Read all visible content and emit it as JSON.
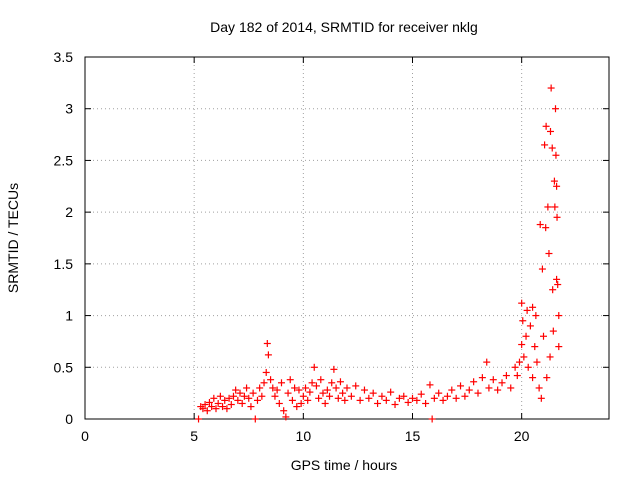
{
  "chart_data": {
    "type": "scatter",
    "title": "Day 182 of 2014, SRMTID for receiver nklg",
    "xlabel": "GPS time / hours",
    "ylabel": "SRMTID / TECUs",
    "xlim": [
      0,
      24
    ],
    "ylim": [
      0,
      3.5
    ],
    "grid": true,
    "legend": "none",
    "xticks": [
      {
        "value": 0,
        "label": "0"
      },
      {
        "value": 5,
        "label": "5"
      },
      {
        "value": 10,
        "label": "10"
      },
      {
        "value": 15,
        "label": "15"
      },
      {
        "value": 20,
        "label": "20"
      }
    ],
    "yticks": [
      {
        "value": 0,
        "label": "0"
      },
      {
        "value": 0.5,
        "label": "0.5"
      },
      {
        "value": 1,
        "label": "1"
      },
      {
        "value": 1.5,
        "label": "1.5"
      },
      {
        "value": 2,
        "label": "2"
      },
      {
        "value": 2.5,
        "label": "2.5"
      },
      {
        "value": 3,
        "label": "3"
      },
      {
        "value": 3.5,
        "label": "3.5"
      }
    ],
    "marker": "+",
    "color": "#ff0000",
    "series": [
      {
        "name": "SRMTID",
        "points": [
          [
            5.2,
            0.0
          ],
          [
            5.3,
            0.12
          ],
          [
            5.4,
            0.1
          ],
          [
            5.5,
            0.14
          ],
          [
            5.6,
            0.08
          ],
          [
            5.7,
            0.16
          ],
          [
            5.8,
            0.12
          ],
          [
            5.9,
            0.2
          ],
          [
            6.0,
            0.1
          ],
          [
            6.1,
            0.15
          ],
          [
            6.2,
            0.22
          ],
          [
            6.3,
            0.12
          ],
          [
            6.4,
            0.18
          ],
          [
            6.5,
            0.1
          ],
          [
            6.6,
            0.2
          ],
          [
            6.7,
            0.14
          ],
          [
            6.8,
            0.22
          ],
          [
            6.9,
            0.28
          ],
          [
            7.0,
            0.18
          ],
          [
            7.1,
            0.25
          ],
          [
            7.2,
            0.15
          ],
          [
            7.3,
            0.22
          ],
          [
            7.4,
            0.3
          ],
          [
            7.5,
            0.2
          ],
          [
            7.6,
            0.12
          ],
          [
            7.7,
            0.25
          ],
          [
            7.8,
            0.0
          ],
          [
            7.9,
            0.18
          ],
          [
            8.0,
            0.3
          ],
          [
            8.1,
            0.22
          ],
          [
            8.2,
            0.35
          ],
          [
            8.3,
            0.45
          ],
          [
            8.35,
            0.73
          ],
          [
            8.4,
            0.62
          ],
          [
            8.5,
            0.38
          ],
          [
            8.6,
            0.3
          ],
          [
            8.7,
            0.22
          ],
          [
            8.8,
            0.28
          ],
          [
            8.9,
            0.15
          ],
          [
            9.0,
            0.35
          ],
          [
            9.1,
            0.08
          ],
          [
            9.2,
            0.02
          ],
          [
            9.3,
            0.25
          ],
          [
            9.4,
            0.38
          ],
          [
            9.5,
            0.18
          ],
          [
            9.6,
            0.3
          ],
          [
            9.7,
            0.12
          ],
          [
            9.8,
            0.28
          ],
          [
            9.9,
            0.15
          ],
          [
            10.0,
            0.22
          ],
          [
            10.1,
            0.3
          ],
          [
            10.2,
            0.18
          ],
          [
            10.3,
            0.26
          ],
          [
            10.4,
            0.35
          ],
          [
            10.5,
            0.5
          ],
          [
            10.6,
            0.32
          ],
          [
            10.7,
            0.2
          ],
          [
            10.8,
            0.38
          ],
          [
            10.9,
            0.25
          ],
          [
            11.0,
            0.15
          ],
          [
            11.1,
            0.28
          ],
          [
            11.2,
            0.22
          ],
          [
            11.3,
            0.35
          ],
          [
            11.4,
            0.48
          ],
          [
            11.5,
            0.3
          ],
          [
            11.6,
            0.2
          ],
          [
            11.7,
            0.36
          ],
          [
            11.8,
            0.25
          ],
          [
            11.9,
            0.18
          ],
          [
            12.0,
            0.3
          ],
          [
            12.2,
            0.22
          ],
          [
            12.4,
            0.32
          ],
          [
            12.6,
            0.18
          ],
          [
            12.8,
            0.28
          ],
          [
            13.0,
            0.2
          ],
          [
            13.2,
            0.25
          ],
          [
            13.4,
            0.15
          ],
          [
            13.6,
            0.22
          ],
          [
            13.8,
            0.18
          ],
          [
            14.0,
            0.26
          ],
          [
            14.2,
            0.14
          ],
          [
            14.4,
            0.2
          ],
          [
            14.6,
            0.22
          ],
          [
            14.8,
            0.16
          ],
          [
            15.0,
            0.2
          ],
          [
            15.2,
            0.18
          ],
          [
            15.4,
            0.24
          ],
          [
            15.6,
            0.15
          ],
          [
            15.8,
            0.33
          ],
          [
            15.9,
            0.0
          ],
          [
            16.0,
            0.2
          ],
          [
            16.2,
            0.25
          ],
          [
            16.4,
            0.18
          ],
          [
            16.6,
            0.22
          ],
          [
            16.8,
            0.28
          ],
          [
            17.0,
            0.2
          ],
          [
            17.2,
            0.32
          ],
          [
            17.4,
            0.22
          ],
          [
            17.6,
            0.28
          ],
          [
            17.8,
            0.36
          ],
          [
            18.0,
            0.25
          ],
          [
            18.2,
            0.4
          ],
          [
            18.4,
            0.55
          ],
          [
            18.5,
            0.3
          ],
          [
            18.7,
            0.38
          ],
          [
            18.9,
            0.28
          ],
          [
            19.1,
            0.35
          ],
          [
            19.3,
            0.42
          ],
          [
            19.5,
            0.3
          ],
          [
            19.7,
            0.5
          ],
          [
            19.8,
            0.42
          ],
          [
            19.9,
            0.55
          ],
          [
            20.0,
            0.72
          ],
          [
            20.0,
            1.12
          ],
          [
            20.05,
            0.95
          ],
          [
            20.1,
            0.6
          ],
          [
            20.2,
            0.8
          ],
          [
            20.25,
            1.05
          ],
          [
            20.3,
            0.5
          ],
          [
            20.4,
            0.9
          ],
          [
            20.5,
            1.08
          ],
          [
            20.5,
            0.4
          ],
          [
            20.6,
            0.7
          ],
          [
            20.65,
            1.0
          ],
          [
            20.7,
            0.55
          ],
          [
            20.8,
            0.3
          ],
          [
            20.85,
            1.88
          ],
          [
            20.9,
            0.2
          ],
          [
            20.95,
            1.45
          ],
          [
            21.0,
            0.8
          ],
          [
            21.05,
            2.65
          ],
          [
            21.1,
            1.85
          ],
          [
            21.12,
            2.83
          ],
          [
            21.15,
            0.4
          ],
          [
            21.2,
            2.05
          ],
          [
            21.25,
            1.6
          ],
          [
            21.3,
            0.6
          ],
          [
            21.32,
            2.78
          ],
          [
            21.35,
            3.2
          ],
          [
            21.4,
            2.62
          ],
          [
            21.42,
            1.25
          ],
          [
            21.45,
            0.85
          ],
          [
            21.5,
            2.3
          ],
          [
            21.52,
            2.05
          ],
          [
            21.55,
            3.0
          ],
          [
            21.57,
            2.55
          ],
          [
            21.6,
            1.35
          ],
          [
            21.6,
            2.25
          ],
          [
            21.62,
            1.95
          ],
          [
            21.65,
            1.3
          ],
          [
            21.7,
            1.0
          ],
          [
            21.7,
            0.7
          ]
        ]
      }
    ]
  }
}
